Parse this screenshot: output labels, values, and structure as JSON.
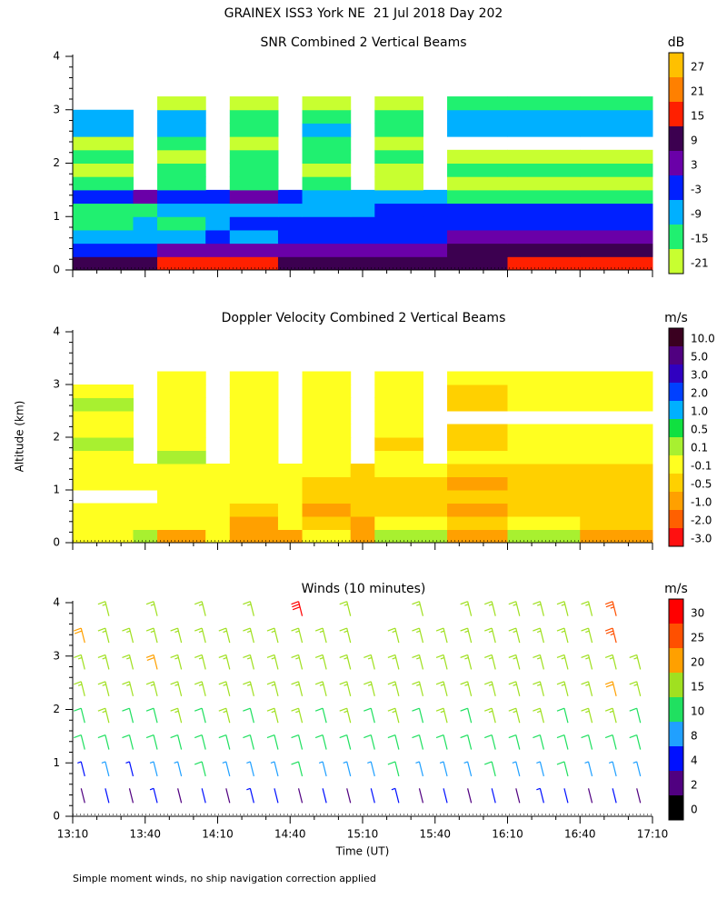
{
  "title": "GRAINEX ISS3 York NE  21 Jul 2018 Day 202",
  "y_label": "Altitude (km)",
  "x_label": "Time (UT)",
  "footnote": "Simple moment winds, no ship navigation correction applied",
  "chart_data": [
    {
      "type": "heatmap",
      "title": "SNR Combined 2 Vertical Beams",
      "unit": "dB",
      "xlim": [
        "13:10",
        "17:10"
      ],
      "ylim": [
        0,
        4
      ],
      "yticks": [
        0,
        1,
        2,
        3,
        4
      ],
      "x_bins": [
        "13:10",
        "13:35",
        "13:45",
        "14:05",
        "14:15",
        "14:35",
        "14:45",
        "15:05",
        "15:15",
        "15:35",
        "15:45",
        "16:10",
        "16:40",
        "17:10"
      ],
      "y_bins": [
        0,
        0.25,
        0.5,
        0.75,
        1,
        1.25,
        1.5,
        1.75,
        2,
        2.25,
        2.5,
        2.75,
        3,
        3.25
      ],
      "values": [
        [
          10,
          10,
          18,
          18,
          18,
          10,
          10,
          10,
          10,
          10,
          12,
          16,
          16
        ],
        [
          0,
          0,
          5,
          5,
          5,
          5,
          5,
          5,
          5,
          8,
          10,
          12,
          12
        ],
        [
          -5,
          -5,
          -5,
          0,
          -5,
          0,
          0,
          0,
          0,
          0,
          5,
          5,
          5
        ],
        [
          -12,
          -5,
          -12,
          -5,
          0,
          0,
          0,
          0,
          0,
          0,
          0,
          0,
          0
        ],
        [
          -12,
          -12,
          -5,
          -5,
          -5,
          -5,
          -5,
          -5,
          0,
          0,
          0,
          0,
          0
        ],
        [
          0,
          5,
          0,
          0,
          5,
          0,
          -5,
          -5,
          -5,
          -5,
          -12,
          -12,
          -12
        ],
        [
          -12,
          null,
          -12,
          null,
          -12,
          null,
          -12,
          null,
          -18,
          null,
          -18,
          -18,
          -18
        ],
        [
          -18,
          null,
          -12,
          null,
          -12,
          null,
          -18,
          null,
          -18,
          null,
          -12,
          -12,
          -12
        ],
        [
          -12,
          null,
          -18,
          null,
          -12,
          null,
          -12,
          null,
          -12,
          null,
          -18,
          -18,
          -18
        ],
        [
          -18,
          null,
          -12,
          null,
          -18,
          null,
          -12,
          null,
          -18,
          null,
          null,
          null,
          null
        ],
        [
          -5,
          null,
          -5,
          null,
          -12,
          null,
          -5,
          null,
          -12,
          null,
          -5,
          -5,
          -5
        ],
        [
          -5,
          null,
          -5,
          null,
          -12,
          null,
          -12,
          null,
          -12,
          null,
          -5,
          -5,
          -5
        ],
        [
          null,
          null,
          -18,
          null,
          -18,
          null,
          -18,
          null,
          -18,
          null,
          -12,
          -12,
          -12
        ]
      ],
      "levels": [
        27,
        21,
        15,
        9,
        3,
        -3,
        -9,
        -15,
        -21
      ],
      "colors": [
        "#ffc000",
        "#ff8000",
        "#ff2000",
        "#3c0050",
        "#6a00a8",
        "#0020ff",
        "#00b0ff",
        "#20f070",
        "#c8ff30"
      ]
    },
    {
      "type": "heatmap",
      "title": "Doppler Velocity Combined 2 Vertical Beams",
      "unit": "m/s",
      "xlim": [
        "13:10",
        "17:10"
      ],
      "ylim": [
        0,
        4
      ],
      "yticks": [
        0,
        1,
        2,
        3,
        4
      ],
      "x_bins": [
        "13:10",
        "13:35",
        "13:45",
        "14:05",
        "14:15",
        "14:35",
        "14:45",
        "15:05",
        "15:15",
        "15:35",
        "15:45",
        "16:10",
        "16:40",
        "17:10"
      ],
      "y_bins": [
        0,
        0.25,
        0.5,
        0.75,
        1,
        1.25,
        1.5,
        1.75,
        2,
        2.25,
        2.5,
        2.75,
        3,
        3.25
      ],
      "values": [
        [
          0,
          0.3,
          -0.7,
          0,
          -0.7,
          -0.7,
          0,
          -0.7,
          0.3,
          0.3,
          -0.7,
          0.3,
          -0.7
        ],
        [
          0,
          0,
          0,
          0,
          -0.7,
          0,
          -0.3,
          -0.7,
          0,
          0,
          -0.3,
          0,
          -0.3
        ],
        [
          0,
          0,
          0,
          0,
          -0.3,
          0,
          -0.7,
          -0.3,
          -0.3,
          -0.3,
          -0.7,
          -0.3,
          -0.3
        ],
        [
          null,
          null,
          0,
          0,
          0,
          0,
          -0.3,
          -0.3,
          -0.3,
          -0.3,
          -0.3,
          -0.3,
          -0.3
        ],
        [
          0,
          0,
          0,
          0,
          0,
          0,
          -0.3,
          -0.3,
          -0.3,
          -0.3,
          -0.7,
          -0.3,
          -0.3
        ],
        [
          0,
          0,
          0,
          0,
          0,
          0,
          0,
          -0.3,
          0,
          0,
          -0.3,
          -0.3,
          -0.3
        ],
        [
          0,
          null,
          0.3,
          null,
          0,
          null,
          0,
          null,
          0,
          null,
          0,
          0,
          0
        ],
        [
          0.3,
          null,
          0,
          null,
          0,
          null,
          0,
          null,
          -0.3,
          null,
          -0.3,
          0,
          0
        ],
        [
          0,
          null,
          0,
          null,
          0,
          null,
          0,
          null,
          0,
          null,
          -0.3,
          0,
          0
        ],
        [
          0,
          null,
          0,
          null,
          0,
          null,
          0,
          null,
          0,
          null,
          null,
          null,
          null
        ],
        [
          0.3,
          null,
          0,
          null,
          0,
          null,
          0,
          null,
          0,
          null,
          -0.3,
          0,
          0
        ],
        [
          0,
          null,
          0,
          null,
          0,
          null,
          0,
          null,
          0,
          null,
          -0.3,
          0,
          0
        ],
        [
          null,
          null,
          0,
          null,
          0,
          null,
          0,
          null,
          0,
          null,
          0,
          0,
          0
        ]
      ],
      "levels": [
        {
          "value": 10,
          "label": "10.0"
        },
        {
          "value": 5,
          "label": "5.0"
        },
        {
          "value": 3,
          "label": "3.0"
        },
        {
          "value": 2,
          "label": "2.0"
        },
        {
          "value": 1,
          "label": "1.0"
        },
        0.5,
        0.1,
        -0.1,
        -0.5,
        {
          "value": -1,
          "label": "-1.0"
        },
        {
          "value": -2,
          "label": "-2.0"
        },
        {
          "value": -3,
          "label": "-3.0"
        }
      ],
      "colors": [
        "#3a0020",
        "#500080",
        "#3000c0",
        "#0040ff",
        "#00b0ff",
        "#10e040",
        "#a8f030",
        "#ffff20",
        "#ffd000",
        "#ffa000",
        "#ff6000",
        "#ff1010"
      ]
    },
    {
      "type": "barbs",
      "title": "Winds (10 minutes)",
      "unit": "m/s",
      "xlim": [
        "13:10",
        "17:10"
      ],
      "ylim": [
        0,
        4
      ],
      "yticks": [
        0,
        1,
        2,
        3,
        4
      ],
      "xticks": [
        "13:10",
        "13:40",
        "14:10",
        "14:40",
        "15:10",
        "15:40",
        "16:10",
        "16:40",
        "17:10"
      ],
      "x": [
        "13:15",
        "13:25",
        "13:35",
        "13:45",
        "13:55",
        "14:05",
        "14:15",
        "14:25",
        "14:35",
        "14:45",
        "14:55",
        "15:05",
        "15:15",
        "15:25",
        "15:35",
        "15:45",
        "15:55",
        "16:05",
        "16:15",
        "16:25",
        "16:35",
        "16:45",
        "16:55",
        "17:05"
      ],
      "y": [
        0.25,
        0.75,
        1.25,
        1.75,
        2.25,
        2.75,
        3.25,
        3.75
      ],
      "values": [
        [
          3,
          4,
          3,
          5,
          3,
          4,
          3,
          5,
          4,
          3,
          4,
          3,
          4,
          5,
          3,
          4,
          3,
          4,
          3,
          5,
          4,
          3,
          4,
          3
        ],
        [
          7,
          9,
          6,
          8,
          9,
          10,
          9,
          8,
          9,
          10,
          9,
          8,
          9,
          10,
          9,
          8,
          9,
          10,
          9,
          9,
          10,
          9,
          8,
          9
        ],
        [
          10,
          12,
          11,
          12,
          12,
          11,
          12,
          13,
          12,
          11,
          12,
          12,
          13,
          12,
          11,
          12,
          12,
          13,
          12,
          12,
          13,
          12,
          11,
          12
        ],
        [
          14,
          15,
          13,
          14,
          15,
          14,
          15,
          14,
          15,
          16,
          14,
          15,
          14,
          15,
          14,
          15,
          14,
          15,
          16,
          15,
          14,
          15,
          16,
          14
        ],
        [
          16,
          17,
          16,
          17,
          16,
          17,
          16,
          17,
          16,
          17,
          18,
          16,
          17,
          16,
          17,
          16,
          17,
          16,
          17,
          16,
          17,
          18,
          23,
          17
        ],
        [
          18,
          17,
          18,
          22,
          18,
          17,
          18,
          17,
          18,
          17,
          18,
          17,
          18,
          18,
          17,
          18,
          17,
          18,
          17,
          18,
          17,
          18,
          18,
          17
        ],
        [
          21,
          18,
          18,
          18,
          18,
          17,
          18,
          18,
          18,
          18,
          18,
          17,
          null,
          18,
          18,
          18,
          19,
          18,
          18,
          18,
          18,
          18,
          28,
          null
        ],
        [
          null,
          18,
          null,
          18,
          null,
          17,
          null,
          18,
          null,
          30,
          null,
          18,
          null,
          null,
          18,
          null,
          18,
          18,
          19,
          18,
          18,
          18,
          28,
          null
        ]
      ],
      "levels": [
        30,
        25,
        20,
        15,
        10,
        8,
        4,
        2,
        0
      ],
      "colors": [
        "#ff0000",
        "#ff5000",
        "#ffa000",
        "#a0e020",
        "#20e060",
        "#20a0ff",
        "#0010ff",
        "#500080",
        "#000000"
      ]
    }
  ]
}
